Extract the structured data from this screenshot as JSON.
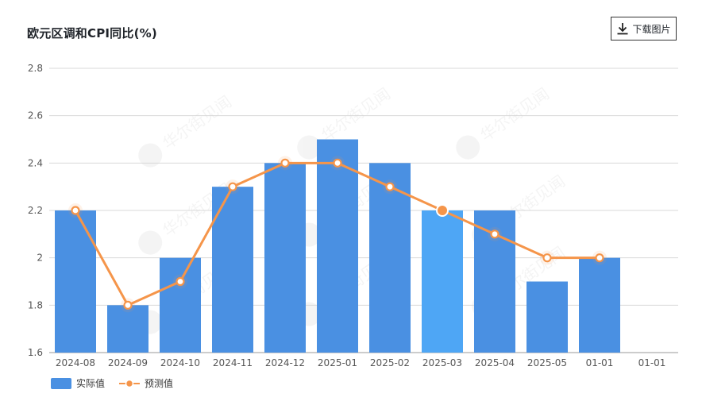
{
  "header": {
    "title": "欧元区调和CPI同比(%)",
    "download_label": "下载图片"
  },
  "watermark": "华尔街见闻",
  "legend": {
    "actual_label": "实际值",
    "forecast_label": "预测值"
  },
  "colors": {
    "bar": "#4a90e2",
    "bar_highlight": "#4ea6f5",
    "line": "#f5954a",
    "grid": "#d9d9d9"
  },
  "chart_data": {
    "type": "bar",
    "title": "欧元区调和CPI同比(%)",
    "categories": [
      "2024-08",
      "2024-09",
      "2024-10",
      "2024-11",
      "2024-12",
      "2025-01",
      "2025-02",
      "2025-03",
      "2025-04",
      "2025-05",
      "01-01",
      "01-01"
    ],
    "series": [
      {
        "name": "实际值",
        "type": "bar",
        "values": [
          2.2,
          1.8,
          2.0,
          2.3,
          2.4,
          2.5,
          2.4,
          2.2,
          2.2,
          1.9,
          2.0,
          null
        ]
      },
      {
        "name": "预测值",
        "type": "line",
        "values": [
          2.2,
          1.8,
          1.9,
          2.3,
          2.4,
          2.4,
          2.3,
          2.2,
          2.1,
          2.0,
          2.0,
          null
        ]
      }
    ],
    "highlight_index": 7,
    "ylim": [
      1.6,
      2.8
    ],
    "yticks": [
      "1.6",
      "1.8",
      "2",
      "2.2",
      "2.4",
      "2.6",
      "2.8"
    ],
    "grid": true,
    "legend_position": "bottom-left"
  }
}
